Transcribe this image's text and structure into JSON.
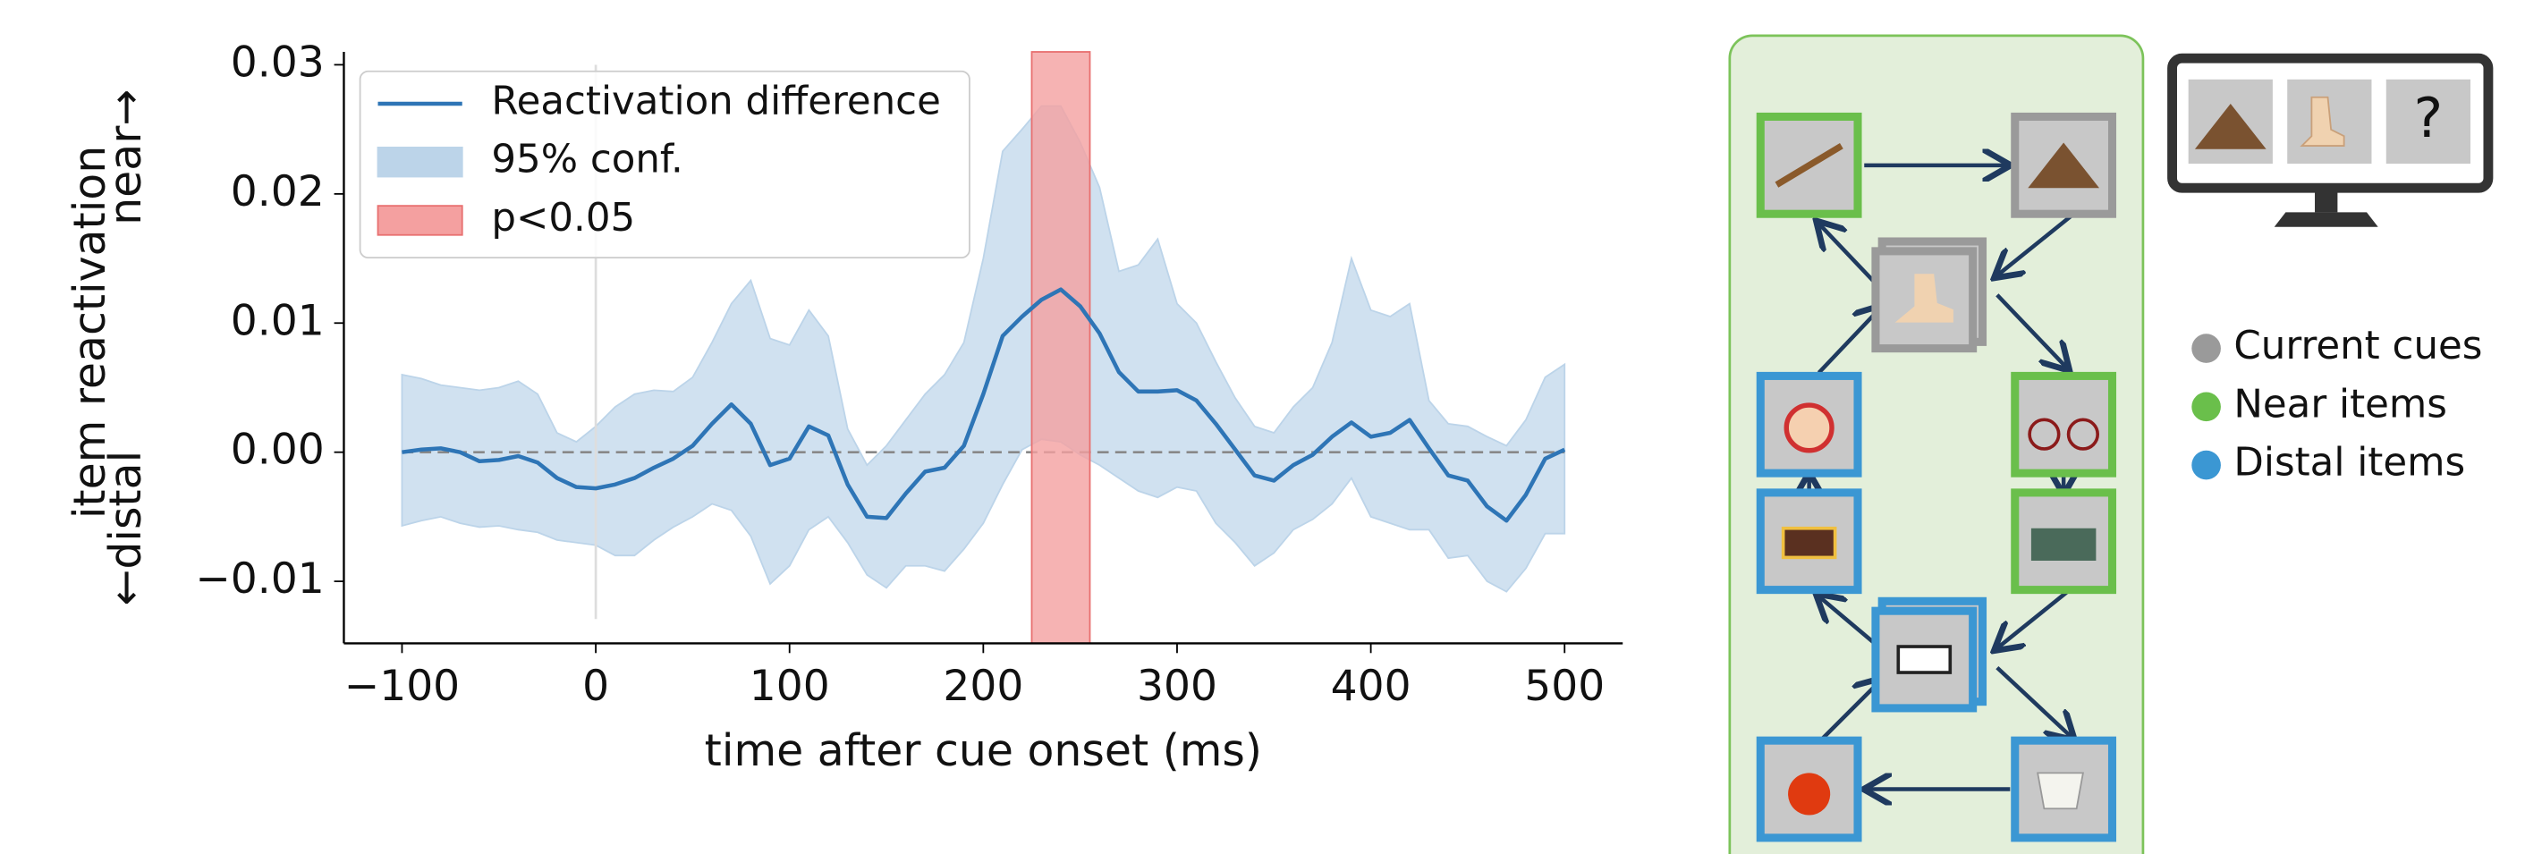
{
  "chart_data": {
    "type": "line",
    "ylabel": "item reactivation",
    "ylabel_top": "near→",
    "ylabel_bottom": "←distal",
    "xlabel": "time after cue onset (ms)",
    "x": [
      -100,
      -90,
      -80,
      -70,
      -60,
      -50,
      -40,
      -30,
      -20,
      -10,
      0,
      10,
      20,
      30,
      40,
      50,
      60,
      70,
      80,
      90,
      100,
      110,
      120,
      130,
      140,
      150,
      160,
      170,
      180,
      190,
      200,
      210,
      220,
      230,
      240,
      250,
      260,
      270,
      280,
      290,
      300,
      310,
      320,
      330,
      340,
      350,
      360,
      370,
      380,
      390,
      400,
      410,
      420,
      430,
      440,
      450,
      460,
      470,
      480,
      490,
      500
    ],
    "series": [
      {
        "name": "Reactivation difference",
        "color": "#2e75b6",
        "values": [
          0.0,
          0.0002,
          0.0003,
          0.0,
          -0.0007,
          -0.0006,
          -0.0003,
          -0.0008,
          -0.002,
          -0.0027,
          -0.0028,
          -0.0025,
          -0.002,
          -0.0012,
          -0.0005,
          0.0005,
          0.0022,
          0.0037,
          0.0022,
          -0.001,
          -0.0005,
          0.002,
          0.0013,
          -0.0025,
          -0.005,
          -0.0051,
          -0.0032,
          -0.0015,
          -0.0012,
          0.0005,
          0.0045,
          0.009,
          0.0105,
          0.0118,
          0.0126,
          0.0113,
          0.0092,
          0.0062,
          0.0047,
          0.0047,
          0.0048,
          0.004,
          0.0022,
          0.0002,
          -0.0018,
          -0.0022,
          -0.001,
          -0.0002,
          0.0012,
          0.0023,
          0.0012,
          0.0015,
          0.0025,
          0.0003,
          -0.0018,
          -0.0022,
          -0.0042,
          -0.0053,
          -0.0033,
          -0.0005,
          0.0002
        ]
      }
    ],
    "band": {
      "name": "95% conf.",
      "color": "#bcd4e9",
      "upper": [
        0.006,
        0.0057,
        0.0052,
        0.005,
        0.0048,
        0.005,
        0.0055,
        0.0045,
        0.0015,
        0.0008,
        0.002,
        0.0035,
        0.0045,
        0.0048,
        0.0047,
        0.0058,
        0.0085,
        0.0115,
        0.0133,
        0.0088,
        0.0083,
        0.011,
        0.009,
        0.0018,
        -0.001,
        0.0005,
        0.0025,
        0.0045,
        0.006,
        0.0085,
        0.015,
        0.0233,
        0.025,
        0.0268,
        0.0268,
        0.024,
        0.0205,
        0.014,
        0.0145,
        0.0165,
        0.0115,
        0.01,
        0.007,
        0.0042,
        0.002,
        0.0015,
        0.0035,
        0.005,
        0.0085,
        0.015,
        0.011,
        0.0105,
        0.0115,
        0.004,
        0.0022,
        0.002,
        0.0012,
        0.0005,
        0.0025,
        0.0058,
        0.0068
      ],
      "lower": [
        -0.0057,
        -0.0053,
        -0.005,
        -0.0055,
        -0.0058,
        -0.0057,
        -0.006,
        -0.0062,
        -0.0068,
        -0.007,
        -0.0072,
        -0.008,
        -0.008,
        -0.0068,
        -0.0058,
        -0.005,
        -0.004,
        -0.0045,
        -0.0065,
        -0.0102,
        -0.0088,
        -0.006,
        -0.005,
        -0.007,
        -0.0095,
        -0.0105,
        -0.0088,
        -0.0088,
        -0.0092,
        -0.0075,
        -0.0055,
        -0.0025,
        0.0002,
        0.001,
        0.0008,
        -0.0002,
        -0.001,
        -0.002,
        -0.003,
        -0.0035,
        -0.0027,
        -0.003,
        -0.0055,
        -0.007,
        -0.0088,
        -0.0078,
        -0.006,
        -0.0052,
        -0.004,
        -0.002,
        -0.005,
        -0.0055,
        -0.006,
        -0.006,
        -0.0082,
        -0.008,
        -0.01,
        -0.0108,
        -0.009,
        -0.0063,
        -0.0063
      ]
    },
    "span": {
      "name": "p<0.05",
      "color": "#f4a0a0",
      "range": [
        225,
        255
      ]
    },
    "hline": 0,
    "vline": 0,
    "xlim": [
      -130,
      530
    ],
    "ylim": [
      -0.0148,
      0.031
    ],
    "xticks": [
      {
        "value": -100,
        "label": "−100"
      },
      0,
      100,
      200,
      300,
      400,
      500
    ],
    "yticks": [
      {
        "value": -0.01,
        "label": "−0.01"
      },
      {
        "value": 0,
        "label": "0.00"
      },
      0.01,
      0.02,
      0.03
    ],
    "legend": "upper left"
  },
  "diagram": {
    "monitor_text": "?",
    "legend": [
      {
        "label": "Current cues",
        "color": "#9a9a9a"
      },
      {
        "label": "Near items",
        "color": "#6abf4b"
      },
      {
        "label": "Distal items",
        "color": "#3b97d3"
      }
    ]
  }
}
